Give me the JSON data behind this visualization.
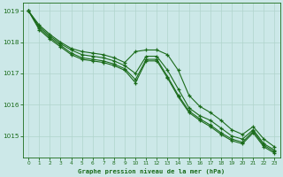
{
  "background_color": "#cce8e8",
  "plot_bg_color": "#cce8e8",
  "line_color": "#1a6b1a",
  "grid_color": "#b0d4cc",
  "xlabel": "Graphe pression niveau de la mer (hPa)",
  "ylim": [
    1014.3,
    1019.25
  ],
  "xlim": [
    -0.5,
    23.5
  ],
  "yticks": [
    1015,
    1016,
    1017,
    1018,
    1019
  ],
  "xticks": [
    0,
    1,
    2,
    3,
    4,
    5,
    6,
    7,
    8,
    9,
    10,
    11,
    12,
    13,
    14,
    15,
    16,
    17,
    18,
    19,
    20,
    21,
    22,
    23
  ],
  "series": [
    [
      1019.0,
      1018.55,
      1018.25,
      1018.0,
      1017.8,
      1017.7,
      1017.65,
      1017.6,
      1017.5,
      1017.35,
      1017.7,
      1017.75,
      1017.75,
      1017.6,
      1017.1,
      1016.3,
      1015.95,
      1015.75,
      1015.5,
      1015.2,
      1015.05,
      1015.3,
      1014.9,
      1014.65
    ],
    [
      1019.0,
      1018.5,
      1018.2,
      1017.95,
      1017.75,
      1017.6,
      1017.55,
      1017.5,
      1017.4,
      1017.25,
      1017.0,
      1017.55,
      1017.55,
      1017.1,
      1016.5,
      1015.9,
      1015.65,
      1015.5,
      1015.25,
      1015.0,
      1014.9,
      1015.2,
      1014.75,
      1014.55
    ],
    [
      1019.0,
      1018.45,
      1018.15,
      1017.9,
      1017.65,
      1017.5,
      1017.45,
      1017.4,
      1017.3,
      1017.15,
      1016.8,
      1017.45,
      1017.45,
      1016.9,
      1016.3,
      1015.8,
      1015.55,
      1015.35,
      1015.1,
      1014.9,
      1014.8,
      1015.15,
      1014.7,
      1014.5
    ],
    [
      1019.0,
      1018.4,
      1018.1,
      1017.85,
      1017.6,
      1017.45,
      1017.4,
      1017.35,
      1017.25,
      1017.1,
      1016.7,
      1017.4,
      1017.4,
      1016.85,
      1016.25,
      1015.75,
      1015.5,
      1015.3,
      1015.05,
      1014.85,
      1014.75,
      1015.1,
      1014.65,
      1014.45
    ]
  ]
}
